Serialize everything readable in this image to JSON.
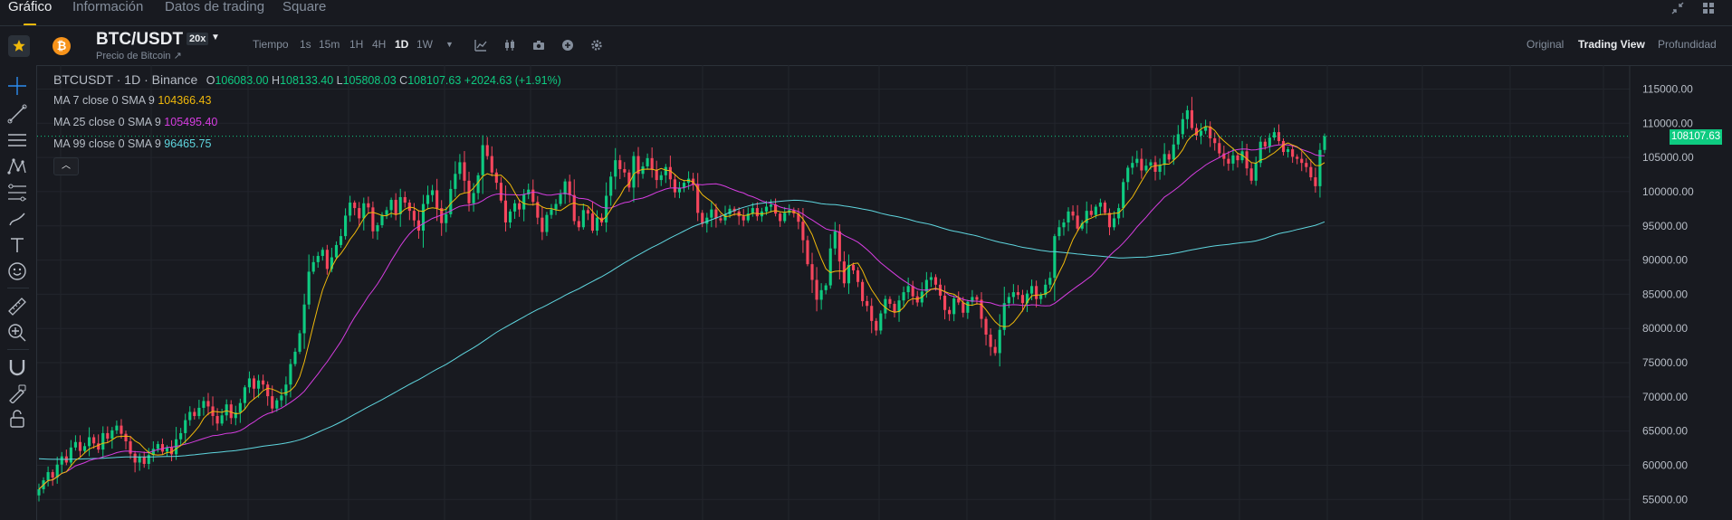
{
  "nav": {
    "tabs": [
      "Gráfico",
      "Información",
      "Datos de trading",
      "Square"
    ],
    "active_tab": "Gráfico"
  },
  "toolbar": {
    "symbol": "BTC/USDT",
    "leverage": "20x",
    "subtitle": "Precio de Bitcoin ↗",
    "coin_glyph": "₿",
    "intervals": [
      "Tiempo",
      "1s",
      "15m",
      "1H",
      "4H",
      "1D",
      "1W"
    ],
    "active_interval": "1D",
    "views": [
      "Original",
      "Trading View",
      "Profundidad"
    ],
    "active_view": "Trading View"
  },
  "legend": {
    "title": "BTCUSDT · 1D · Binance",
    "o_label": "O",
    "o": "106083.00",
    "h_label": "H",
    "h": "108133.40",
    "l_label": "L",
    "l": "105808.03",
    "c_label": "C",
    "c": "108107.63",
    "change": "+2024.63 (+1.91%)",
    "ma7_label": "MA 7 close 0 SMA 9",
    "ma7": "104366.43",
    "ma25_label": "MA 25 close 0 SMA 9",
    "ma25": "105495.40",
    "ma99_label": "MA 99 close 0 SMA 9",
    "ma99": "96465.75"
  },
  "colors": {
    "up": "#0ecb81",
    "down": "#f6465d",
    "ma7": "#f0b90b",
    "ma25": "#d63de0",
    "ma99": "#5fd6df",
    "accent": "#f0b90b"
  },
  "price_axis": {
    "labels": [
      "115000.00",
      "110000.00",
      "105000.00",
      "100000.00",
      "95000.00",
      "90000.00",
      "85000.00",
      "80000.00",
      "75000.00",
      "70000.00",
      "65000.00",
      "60000.00",
      "55000.00"
    ],
    "current": "108107.63"
  },
  "chart_data": {
    "type": "candlestick",
    "ylim": [
      52000,
      118500
    ],
    "last_close": 108107.63,
    "closes": [
      56500,
      57800,
      59000,
      58200,
      60100,
      61300,
      60400,
      62600,
      63400,
      62100,
      62800,
      64100,
      63200,
      62300,
      64700,
      63900,
      65100,
      65800,
      64600,
      63500,
      61700,
      60400,
      61200,
      60200,
      61500,
      62400,
      63100,
      62000,
      62600,
      61600,
      63800,
      64700,
      66600,
      67800,
      67200,
      68400,
      69400,
      68600,
      67200,
      66100,
      67300,
      68900,
      66900,
      67700,
      69100,
      71400,
      72700,
      71200,
      72400,
      71800,
      70100,
      68300,
      69500,
      70200,
      71800,
      74800,
      76600,
      79300,
      83500,
      88300,
      89700,
      90600,
      91500,
      88700,
      90400,
      92200,
      93500,
      96500,
      98400,
      97600,
      96100,
      98300,
      97700,
      94200,
      95100,
      96600,
      97300,
      98800,
      96700,
      99200,
      98400,
      97200,
      95800,
      94300,
      98200,
      99500,
      100200,
      97600,
      95400,
      96700,
      100400,
      102600,
      104300,
      101600,
      98300,
      99800,
      102400,
      106800,
      105200,
      102800,
      101300,
      98700,
      95500,
      97100,
      98300,
      97400,
      99600,
      100300,
      98500,
      96200,
      94100,
      96600,
      97400,
      98200,
      99600,
      101500,
      99500,
      95700,
      94800,
      97300,
      96800,
      94300,
      96200,
      95500,
      99400,
      102200,
      104600,
      103300,
      102800,
      100600,
      105200,
      102600,
      103700,
      104900,
      103200,
      101700,
      102400,
      103600,
      101800,
      99900,
      100600,
      101300,
      101900,
      101000,
      96900,
      95300,
      96200,
      97400,
      96100,
      95800,
      96700,
      97500,
      97100,
      96400,
      95800,
      96800,
      97600,
      96400,
      97100,
      97800,
      98100,
      96800,
      95700,
      96900,
      97300,
      96800,
      95600,
      92900,
      89400,
      87100,
      84200,
      85600,
      86300,
      91700,
      94200,
      89800,
      86600,
      89300,
      88500,
      86800,
      84000,
      83300,
      81100,
      79700,
      82200,
      84300,
      83600,
      82400,
      84100,
      85300,
      86200,
      84700,
      83800,
      85400,
      87100,
      87500,
      86400,
      84800,
      82700,
      82100,
      84400,
      83800,
      82300,
      83900,
      84600,
      84200,
      81400,
      79100,
      77300,
      76400,
      79800,
      83700,
      84600,
      85300,
      84900,
      83700,
      85100,
      86200,
      84300,
      84900,
      86400,
      87400,
      93500,
      94800,
      95500,
      97100,
      96500,
      94600,
      95400,
      97200,
      96600,
      97800,
      98400,
      96900,
      94800,
      96100,
      97600,
      101400,
      103500,
      104200,
      104800,
      103100,
      103800,
      104300,
      102900,
      103900,
      105500,
      104700,
      106900,
      108400,
      110600,
      111900,
      109300,
      108200,
      108900,
      109500,
      107800,
      107100,
      105600,
      104800,
      104100,
      105300,
      104600,
      105900,
      103400,
      101600,
      104200,
      107300,
      106600,
      107900,
      108700,
      107400,
      105800,
      106200,
      105100,
      104800,
      104200,
      103600,
      102100,
      100800,
      106100,
      108107.63
    ]
  }
}
